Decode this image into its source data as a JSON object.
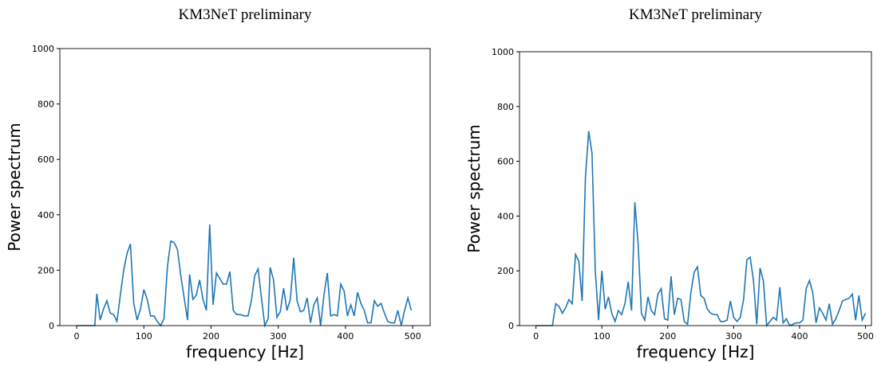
{
  "chart_data": [
    {
      "type": "line",
      "title": "KM3NeT preliminary",
      "xlabel": "frequency [Hz]",
      "ylabel": "Power spectrum",
      "xlim": [
        -25,
        526
      ],
      "ylim": [
        0,
        1000
      ],
      "xticks": [
        0,
        100,
        200,
        300,
        400,
        500
      ],
      "yticks": [
        0,
        200,
        400,
        600,
        800,
        1000
      ],
      "series": [
        {
          "color": "#1f77b4",
          "x": [
            0,
            5,
            10,
            15,
            20,
            27,
            30,
            35,
            40,
            45,
            50,
            55,
            60,
            65,
            70,
            75,
            80,
            85,
            90,
            95,
            100,
            105,
            110,
            115,
            120,
            125,
            130,
            135,
            140,
            145,
            150,
            155,
            160,
            165,
            168,
            173,
            178,
            183,
            188,
            193,
            198,
            203,
            208,
            213,
            218,
            223,
            228,
            233,
            238,
            243,
            250,
            255,
            260,
            265,
            270,
            275,
            280,
            285,
            288,
            293,
            298,
            303,
            308,
            313,
            318,
            323,
            328,
            333,
            338,
            343,
            348,
            353,
            358,
            363,
            368,
            373,
            378,
            383,
            388,
            393,
            398,
            403,
            408,
            413,
            418,
            423,
            428,
            433,
            438,
            443,
            448,
            453,
            458,
            463,
            468,
            473,
            478,
            483,
            488,
            493,
            498
          ],
          "values": [
            0,
            0,
            0,
            0,
            0,
            0,
            115,
            20,
            60,
            90,
            45,
            40,
            15,
            110,
            200,
            260,
            295,
            80,
            20,
            60,
            130,
            95,
            35,
            35,
            15,
            0,
            25,
            210,
            305,
            300,
            275,
            180,
            100,
            20,
            185,
            95,
            110,
            165,
            95,
            55,
            365,
            75,
            190,
            170,
            150,
            150,
            195,
            55,
            40,
            40,
            35,
            35,
            90,
            180,
            205,
            100,
            0,
            25,
            210,
            165,
            30,
            50,
            135,
            55,
            95,
            245,
            90,
            50,
            55,
            100,
            10,
            75,
            100,
            0,
            110,
            190,
            35,
            40,
            35,
            150,
            125,
            35,
            75,
            35,
            120,
            80,
            55,
            10,
            10,
            90,
            70,
            80,
            45,
            15,
            10,
            10,
            55,
            0,
            55,
            100,
            55
          ]
        }
      ]
    },
    {
      "type": "line",
      "title": "KM3NeT preliminary",
      "xlabel": "frequency [Hz]",
      "ylabel": "Power spectrum",
      "xlim": [
        -25,
        509
      ],
      "ylim": [
        0,
        1000
      ],
      "xticks": [
        0,
        100,
        200,
        300,
        400,
        500
      ],
      "yticks": [
        0,
        200,
        400,
        600,
        800,
        1000
      ],
      "series": [
        {
          "color": "#1f77b4",
          "x": [
            0,
            5,
            10,
            15,
            20,
            25,
            30,
            35,
            40,
            45,
            50,
            55,
            60,
            65,
            70,
            75,
            80,
            85,
            90,
            95,
            100,
            105,
            110,
            115,
            120,
            125,
            130,
            135,
            140,
            145,
            150,
            155,
            160,
            165,
            170,
            175,
            180,
            185,
            190,
            195,
            200,
            205,
            210,
            215,
            220,
            225,
            230,
            235,
            240,
            245,
            250,
            255,
            260,
            265,
            270,
            275,
            280,
            285,
            290,
            295,
            300,
            305,
            310,
            315,
            320,
            325,
            330,
            335,
            340,
            345,
            350,
            355,
            360,
            365,
            370,
            375,
            380,
            385,
            390,
            395,
            400,
            405,
            410,
            415,
            420,
            425,
            430,
            435,
            440,
            445,
            450,
            455,
            460,
            465,
            470,
            475,
            480,
            485,
            490,
            495,
            500
          ],
          "values": [
            0,
            0,
            0,
            0,
            0,
            0,
            80,
            70,
            45,
            65,
            95,
            80,
            260,
            235,
            90,
            540,
            710,
            630,
            200,
            20,
            200,
            60,
            105,
            45,
            15,
            55,
            40,
            80,
            160,
            55,
            450,
            300,
            45,
            20,
            105,
            55,
            40,
            115,
            135,
            25,
            20,
            180,
            40,
            100,
            95,
            15,
            5,
            120,
            195,
            215,
            110,
            100,
            60,
            45,
            40,
            40,
            15,
            15,
            20,
            90,
            30,
            15,
            30,
            95,
            240,
            250,
            165,
            5,
            210,
            165,
            0,
            15,
            30,
            20,
            140,
            10,
            25,
            0,
            5,
            10,
            10,
            20,
            135,
            165,
            120,
            10,
            65,
            45,
            20,
            80,
            5,
            25,
            55,
            90,
            95,
            100,
            115,
            20,
            110,
            20,
            45
          ]
        }
      ]
    }
  ]
}
